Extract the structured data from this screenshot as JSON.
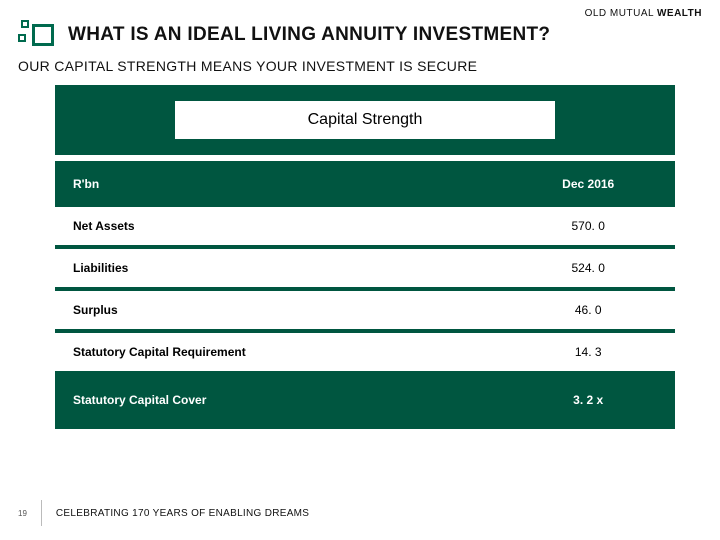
{
  "brand": {
    "part1": "OLD MUTUAL ",
    "part2": "WEALTH"
  },
  "title": "WHAT IS AN IDEAL LIVING ANNUITY INVESTMENT?",
  "subtitle": "OUR CAPITAL STRENGTH MEANS YOUR INVESTMENT IS SECURE",
  "table": {
    "heading": "Capital Strength",
    "columns": {
      "label": "R'bn",
      "value": "Dec 2016"
    },
    "rows": [
      {
        "label": "Net Assets",
        "value": "570. 0"
      },
      {
        "label": "Liabilities",
        "value": "524. 0"
      },
      {
        "label": "Surplus",
        "value": "46. 0"
      },
      {
        "label": "Statutory Capital Requirement",
        "value": "14. 3"
      }
    ],
    "footer": {
      "label": "Statutory Capital Cover",
      "value": "3. 2 x"
    }
  },
  "page_number": "19",
  "tagline": "CELEBRATING 170 YEARS OF ENABLING DREAMS",
  "colors": {
    "brand_green": "#005640",
    "logo_green": "#006a4e",
    "white": "#ffffff",
    "text": "#111111"
  }
}
